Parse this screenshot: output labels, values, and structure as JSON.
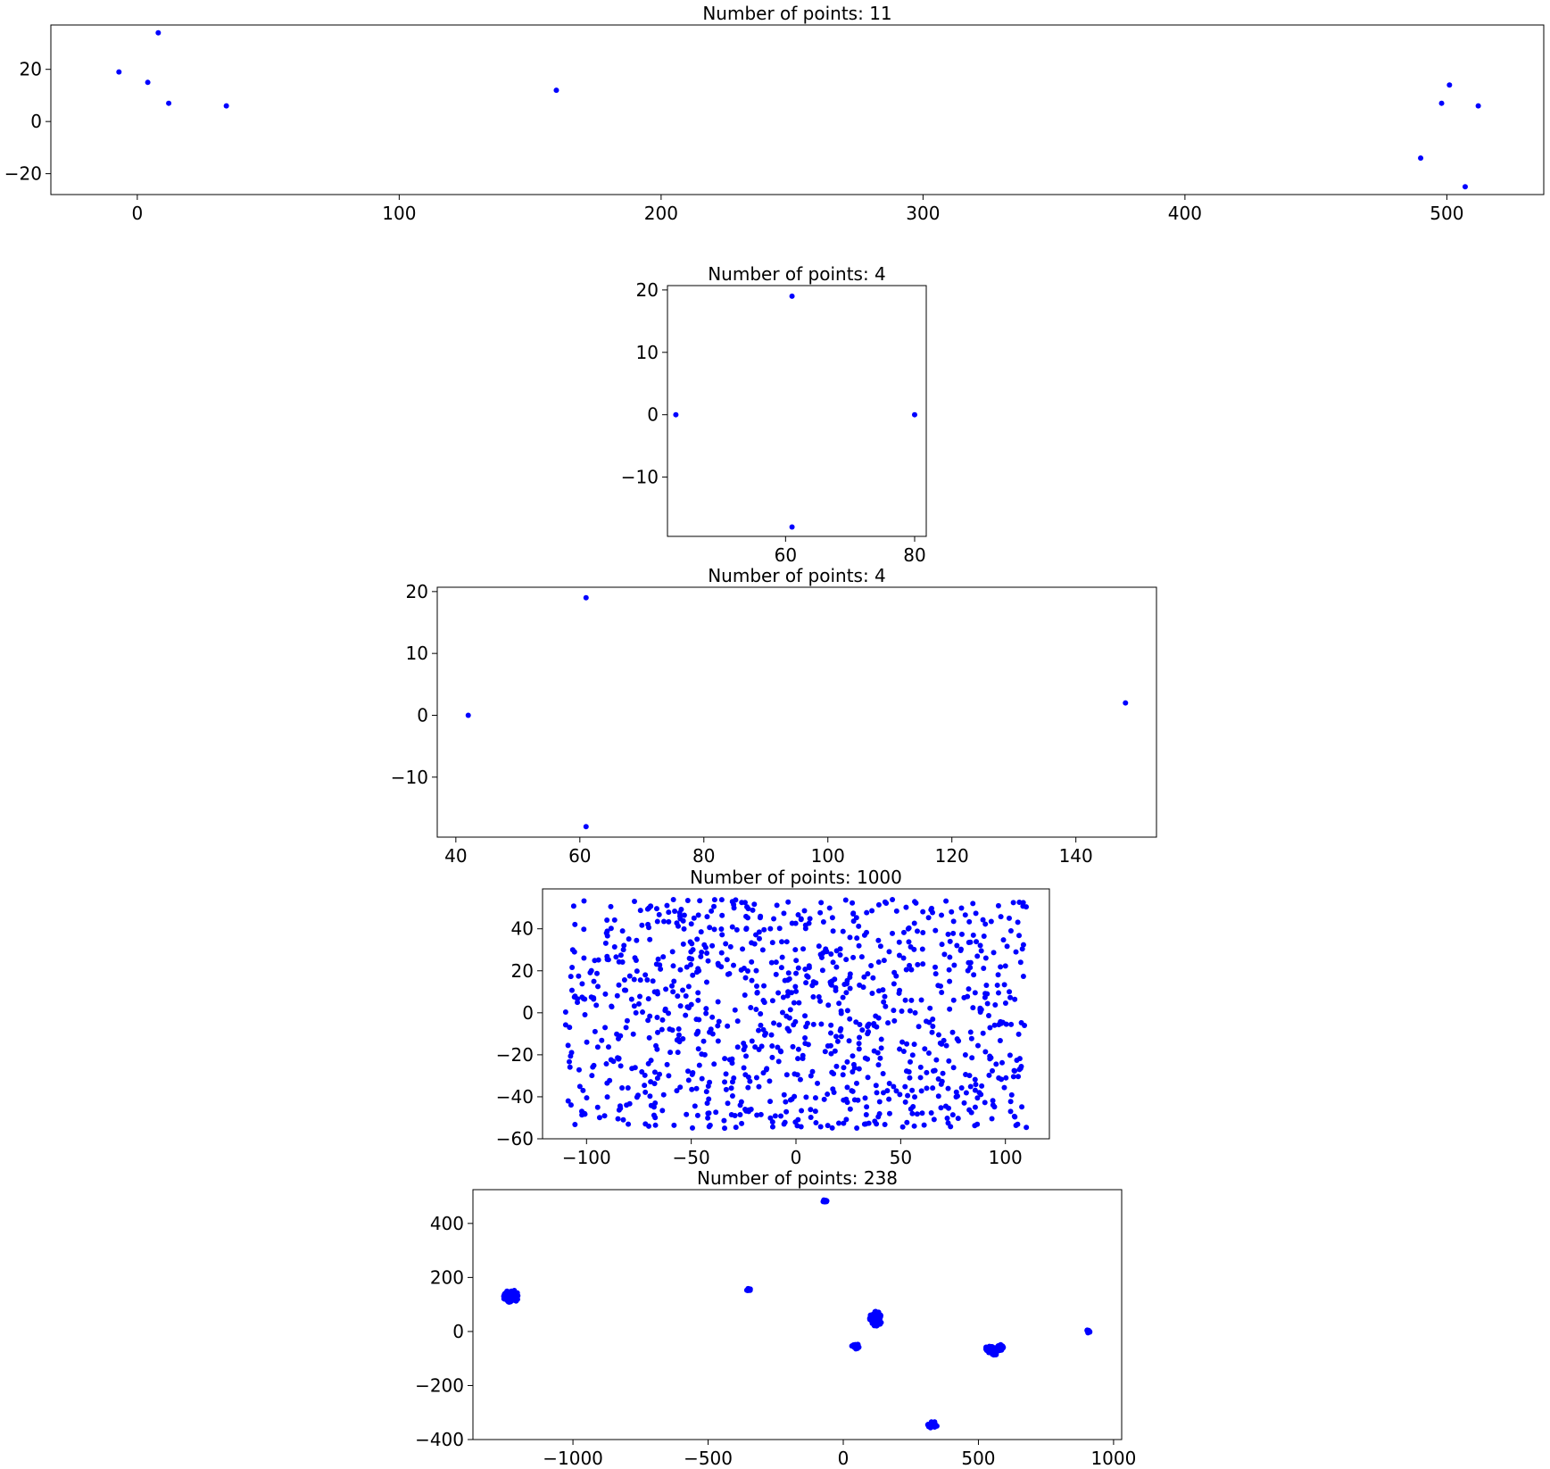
{
  "chart_data": [
    {
      "type": "scatter",
      "title": "Number of points: 11",
      "xlim": [
        -33,
        537
      ],
      "ylim": [
        -28,
        37
      ],
      "xticks": [
        0,
        100,
        200,
        300,
        400,
        500
      ],
      "yticks": [
        -20,
        0,
        20
      ],
      "color": "#0000ff",
      "points": [
        [
          -7,
          19
        ],
        [
          4,
          15
        ],
        [
          8,
          34
        ],
        [
          12,
          7
        ],
        [
          34,
          6
        ],
        [
          160,
          12
        ],
        [
          490,
          -14
        ],
        [
          498,
          7
        ],
        [
          501,
          14
        ],
        [
          507,
          -25
        ],
        [
          512,
          6
        ]
      ]
    },
    {
      "type": "scatter",
      "title": "Number of points: 4",
      "xlim": [
        41.7,
        81.8
      ],
      "ylim": [
        -19.5,
        20.7
      ],
      "xticks": [
        60,
        80
      ],
      "yticks": [
        -10,
        0,
        10,
        20
      ],
      "color": "#0000ff",
      "points": [
        [
          43,
          0
        ],
        [
          61,
          19
        ],
        [
          61,
          -18
        ],
        [
          80,
          0
        ]
      ]
    },
    {
      "type": "scatter",
      "title": "Number of points: 4",
      "xlim": [
        37,
        153
      ],
      "ylim": [
        -19.7,
        20.7
      ],
      "xticks": [
        40,
        60,
        80,
        100,
        120,
        140
      ],
      "yticks": [
        -10,
        0,
        10,
        20
      ],
      "color": "#0000ff",
      "points": [
        [
          42,
          0
        ],
        [
          61,
          19
        ],
        [
          61,
          -18
        ],
        [
          148,
          2
        ]
      ]
    },
    {
      "type": "scatter",
      "title": "Number of points: 1000",
      "xlim": [
        -121,
        121
      ],
      "ylim": [
        -60,
        59
      ],
      "xticks": [
        -100,
        -50,
        0,
        50,
        100
      ],
      "yticks": [
        -60,
        -40,
        -20,
        0,
        20,
        40
      ],
      "color": "#0000ff",
      "generated": {
        "count": 1000,
        "x_range": [
          -110,
          110
        ],
        "y_range": [
          -55,
          54
        ]
      }
    },
    {
      "type": "scatter",
      "title": "Number of points: 238",
      "xlim": [
        -1370,
        1030
      ],
      "ylim": [
        -400,
        525
      ],
      "xticks": [
        -1000,
        -500,
        0,
        500,
        1000
      ],
      "yticks": [
        -400,
        -200,
        0,
        200,
        400
      ],
      "color": "#0000ff",
      "clusters": [
        {
          "cx": -1230,
          "cy": 130,
          "rx": 28,
          "ry": 25,
          "n": 48
        },
        {
          "cx": -350,
          "cy": 155,
          "rx": 10,
          "ry": 4,
          "n": 10
        },
        {
          "cx": -70,
          "cy": 483,
          "rx": 10,
          "ry": 4,
          "n": 8
        },
        {
          "cx": 45,
          "cy": -55,
          "rx": 15,
          "ry": 10,
          "n": 22
        },
        {
          "cx": 120,
          "cy": 45,
          "rx": 25,
          "ry": 30,
          "n": 45
        },
        {
          "cx": 330,
          "cy": -345,
          "rx": 18,
          "ry": 14,
          "n": 15
        },
        {
          "cx": 550,
          "cy": -65,
          "rx": 25,
          "ry": 15,
          "n": 30
        },
        {
          "cx": 580,
          "cy": -60,
          "rx": 12,
          "ry": 12,
          "n": 20
        },
        {
          "cx": 905,
          "cy": 0,
          "rx": 8,
          "ry": 6,
          "n": 10
        },
        {
          "cx": 560,
          "cy": -80,
          "rx": 10,
          "ry": 8,
          "n": 30
        }
      ]
    }
  ]
}
